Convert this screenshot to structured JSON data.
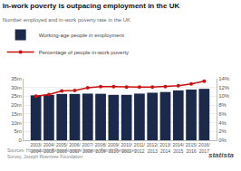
{
  "chart_data": {
    "type": "bar",
    "title": "In-work poverty is outpacing employment in the UK",
    "subtitle": "Number employed and in-work poverty rate in the UK",
    "categories": [
      "2003/\n2004",
      "2004/\n2005",
      "2005/\n2006",
      "2006/\n2007",
      "2007/\n2008",
      "2008/\n2009",
      "2009/\n2010",
      "2010/\n2011",
      "2011/\n2012",
      "2012/\n2013",
      "2013/\n2014",
      "2014/\n2015",
      "2015/\n2016",
      "2016/\n2017"
    ],
    "series": [
      {
        "name": "Working-age people in employment",
        "type": "bar",
        "color": "#1b2a4a",
        "values": [
          25.5,
          25.8,
          26.3,
          26.3,
          26.5,
          26.4,
          25.8,
          25.8,
          26.5,
          27.0,
          27.4,
          28.3,
          28.8,
          29.2
        ]
      },
      {
        "name": "Percentage of people in-work poverty",
        "type": "line",
        "color": "#cc1111",
        "marker": "circle",
        "axis": "y2",
        "values": [
          10.0,
          10.4,
          11.2,
          11.3,
          11.9,
          12.2,
          12.2,
          12.1,
          12.1,
          12.1,
          12.2,
          12.4,
          12.8,
          13.4
        ]
      }
    ],
    "ylim": [
      0,
      35
    ],
    "yticks": [
      0,
      {
        "value": 5,
        "label": "5m"
      },
      {
        "value": 10,
        "label": "10m"
      },
      {
        "value": 15,
        "label": "15m"
      },
      {
        "value": 20,
        "label": "20m"
      },
      {
        "value": 25,
        "label": "25m"
      },
      {
        "value": 30,
        "label": "30m"
      },
      {
        "value": 35,
        "label": "35m"
      }
    ],
    "y2lim": [
      0,
      14
    ],
    "y2ticks": [
      {
        "value": 0,
        "label": "0%"
      },
      {
        "value": 2,
        "label": "2%"
      },
      {
        "value": 4,
        "label": "4%"
      },
      {
        "value": 6,
        "label": "6%"
      },
      {
        "value": 8,
        "label": "8%"
      },
      {
        "value": 10,
        "label": "10%"
      },
      {
        "value": 12,
        "label": "12%"
      },
      {
        "value": 14,
        "label": "14%"
      }
    ],
    "grid": true,
    "legend": "top left",
    "annotations": [
      "Sources: Households Below Average Income, Family Resources\nSurvey, Joseph Rowntree Foundation",
      "statista"
    ]
  }
}
